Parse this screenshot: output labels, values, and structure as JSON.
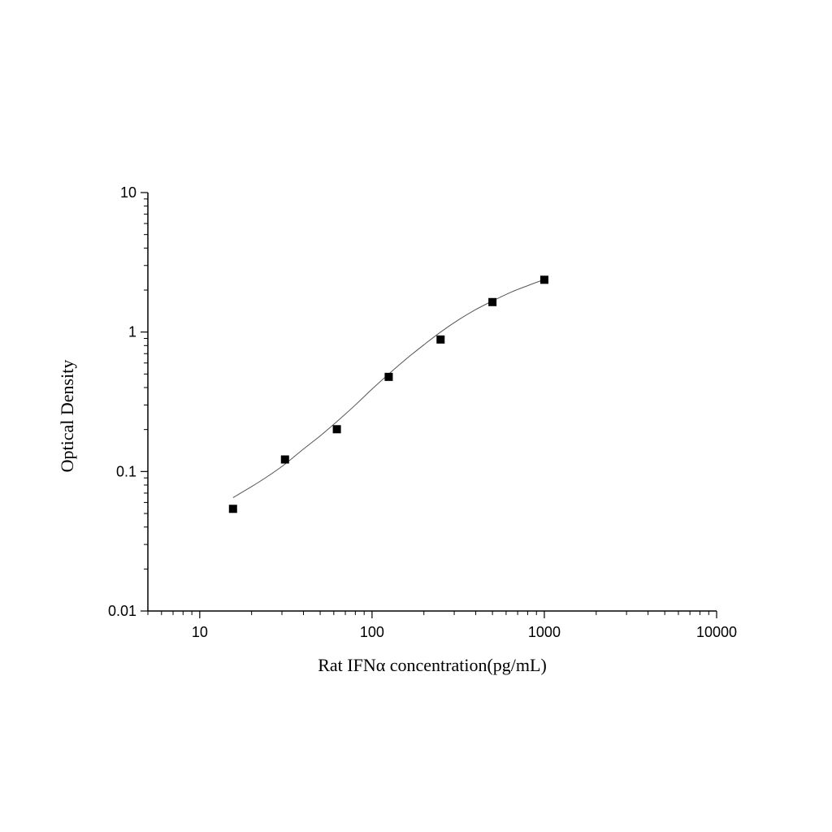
{
  "chart_data": {
    "type": "scatter",
    "title": "",
    "xlabel": "Rat IFNα   concentration(pg/mL)",
    "ylabel": "Optical Density",
    "x_scale": "log",
    "y_scale": "log",
    "xlim": [
      5,
      10000
    ],
    "ylim": [
      0.01,
      10
    ],
    "x_ticks": [
      10,
      100,
      1000,
      10000
    ],
    "x_tick_labels": [
      "10",
      "100",
      "1000",
      "10000"
    ],
    "y_ticks": [
      0.01,
      0.1,
      1,
      10
    ],
    "y_tick_labels": [
      "0.01",
      "0.1",
      "1",
      "10"
    ],
    "grid": false,
    "legend": "none",
    "marker": "square",
    "colors": {
      "marker": "#000000",
      "curve": "#555555",
      "axis": "#000000"
    },
    "series": [
      {
        "x": [
          15.6,
          31.25,
          62.5,
          125,
          250,
          500,
          1000
        ],
        "y": [
          0.054,
          0.122,
          0.201,
          0.477,
          0.884,
          1.64,
          2.37
        ]
      }
    ],
    "fit_curve": {
      "x": [
        15.6,
        20,
        25,
        31.25,
        40,
        50,
        62.5,
        80,
        100,
        125,
        160,
        200,
        250,
        320,
        400,
        500,
        640,
        800,
        1000
      ],
      "y": [
        0.065,
        0.078,
        0.093,
        0.113,
        0.145,
        0.18,
        0.228,
        0.3,
        0.39,
        0.5,
        0.65,
        0.81,
        1.0,
        1.23,
        1.45,
        1.67,
        1.93,
        2.15,
        2.38
      ]
    }
  }
}
